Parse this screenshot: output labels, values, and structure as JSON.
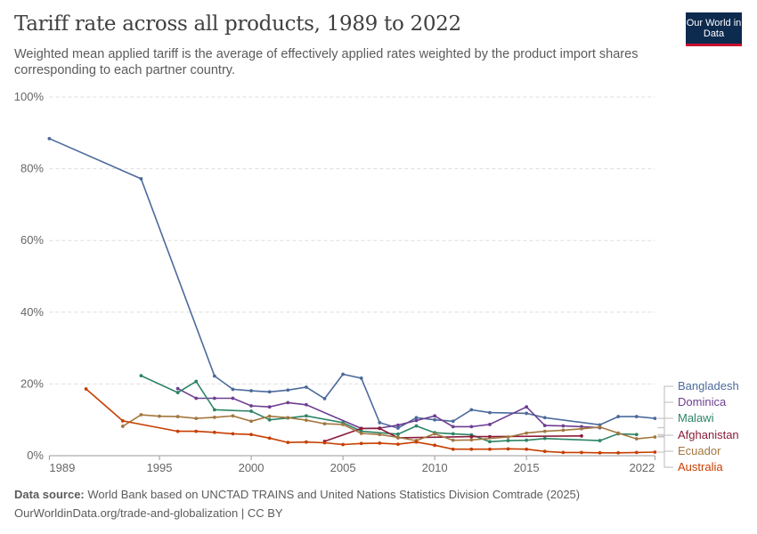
{
  "header": {
    "title": "Tariff rate across all products, 1989 to 2022",
    "subtitle": "Weighted mean applied tariff is the average of effectively applied rates weighted by the product import shares corresponding to each partner country.",
    "logo_text": "Our World in Data"
  },
  "footer": {
    "source_label": "Data source:",
    "source_text": "World Bank based on UNCTAD TRAINS and United Nations Statistics Division Comtrade (2025)",
    "url": "OurWorldinData.org/trade-and-globalization | CC BY"
  },
  "chart_data": {
    "type": "line",
    "title": "Tariff rate across all products, 1989 to 2022",
    "xlim": [
      1989,
      2022
    ],
    "ylim": [
      0,
      100
    ],
    "x_ticks": [
      "1989",
      "1995",
      "2000",
      "2005",
      "2010",
      "2015",
      "2022"
    ],
    "y_ticks": [
      "0%",
      "20%",
      "40%",
      "60%",
      "80%",
      "100%"
    ],
    "grid": "horizontal dashed",
    "legend": "right, end-of-line labels",
    "series": [
      {
        "name": "Bangladesh",
        "color": "#4c6a9c",
        "x": [
          1989,
          1994,
          1998,
          1999,
          2000,
          2001,
          2002,
          2003,
          2004,
          2005,
          2006,
          2007,
          2008,
          2009,
          2010,
          2011,
          2012,
          2013,
          2015,
          2016,
          2019,
          2020,
          2021,
          2022
        ],
        "y": [
          88.4,
          77.2,
          22.2,
          18.5,
          18.1,
          17.8,
          18.3,
          19.1,
          15.9,
          22.7,
          21.6,
          9.2,
          7.7,
          10.6,
          10.0,
          9.6,
          12.8,
          12.0,
          11.8,
          10.6,
          8.6,
          10.9,
          10.9,
          10.4
        ]
      },
      {
        "name": "Dominica",
        "color": "#6d3e91",
        "x": [
          1996,
          1997,
          1998,
          1999,
          2000,
          2001,
          2002,
          2003,
          2006,
          2007,
          2008,
          2009,
          2010,
          2011,
          2012,
          2013,
          2015,
          2016,
          2017,
          2018,
          2019
        ],
        "y": [
          18.7,
          16.0,
          16.0,
          16.0,
          13.9,
          13.6,
          14.8,
          14.2,
          7.6,
          7.7,
          8.5,
          9.8,
          11.1,
          8.1,
          8.1,
          8.7,
          13.6,
          8.4,
          8.3,
          8.1,
          7.8
        ]
      },
      {
        "name": "Malawi",
        "color": "#2c8465",
        "x": [
          1994,
          1996,
          1997,
          1998,
          2000,
          2001,
          2002,
          2003,
          2005,
          2006,
          2008,
          2009,
          2010,
          2011,
          2012,
          2013,
          2014,
          2015,
          2016,
          2019,
          2020,
          2021
        ],
        "y": [
          22.3,
          17.6,
          20.7,
          12.8,
          12.4,
          10.0,
          10.5,
          11.1,
          9.2,
          6.8,
          6.0,
          8.3,
          6.4,
          6.1,
          5.8,
          3.9,
          4.2,
          4.3,
          4.8,
          4.2,
          6.1,
          5.9
        ]
      },
      {
        "name": "Afghanistan",
        "color": "#8c1c3a",
        "x": [
          2004,
          2006,
          2007,
          2008,
          2012,
          2013,
          2018
        ],
        "y": [
          4.0,
          7.6,
          7.6,
          5.0,
          5.3,
          5.3,
          5.5
        ]
      },
      {
        "name": "Ecuador",
        "color": "#a2773e",
        "x": [
          1993,
          1994,
          1995,
          1996,
          1997,
          1998,
          1999,
          2000,
          2001,
          2002,
          2003,
          2004,
          2005,
          2006,
          2007,
          2008,
          2009,
          2010,
          2011,
          2012,
          2014,
          2015,
          2016,
          2017,
          2018,
          2019,
          2020,
          2021,
          2022
        ],
        "y": [
          8.2,
          11.4,
          11.0,
          10.9,
          10.4,
          10.7,
          11.1,
          9.6,
          11.0,
          10.6,
          9.9,
          8.9,
          8.7,
          6.2,
          5.9,
          5.1,
          4.2,
          6.1,
          4.3,
          4.4,
          5.2,
          6.3,
          6.8,
          7.1,
          7.5,
          8.0,
          6.3,
          4.7,
          5.2
        ]
      },
      {
        "name": "Australia",
        "color": "#c73e00",
        "x": [
          1991,
          1993,
          1996,
          1997,
          1998,
          1999,
          2000,
          2001,
          2002,
          2003,
          2004,
          2005,
          2006,
          2007,
          2008,
          2009,
          2010,
          2011,
          2012,
          2013,
          2014,
          2015,
          2016,
          2017,
          2018,
          2019,
          2020,
          2021,
          2022
        ],
        "y": [
          18.6,
          9.7,
          6.8,
          6.8,
          6.5,
          6.1,
          5.9,
          4.9,
          3.7,
          3.8,
          3.6,
          3.1,
          3.4,
          3.5,
          3.2,
          3.8,
          2.9,
          1.8,
          1.8,
          1.8,
          1.9,
          1.8,
          1.2,
          0.9,
          0.9,
          0.8,
          0.8,
          0.9,
          1.0
        ]
      }
    ]
  }
}
